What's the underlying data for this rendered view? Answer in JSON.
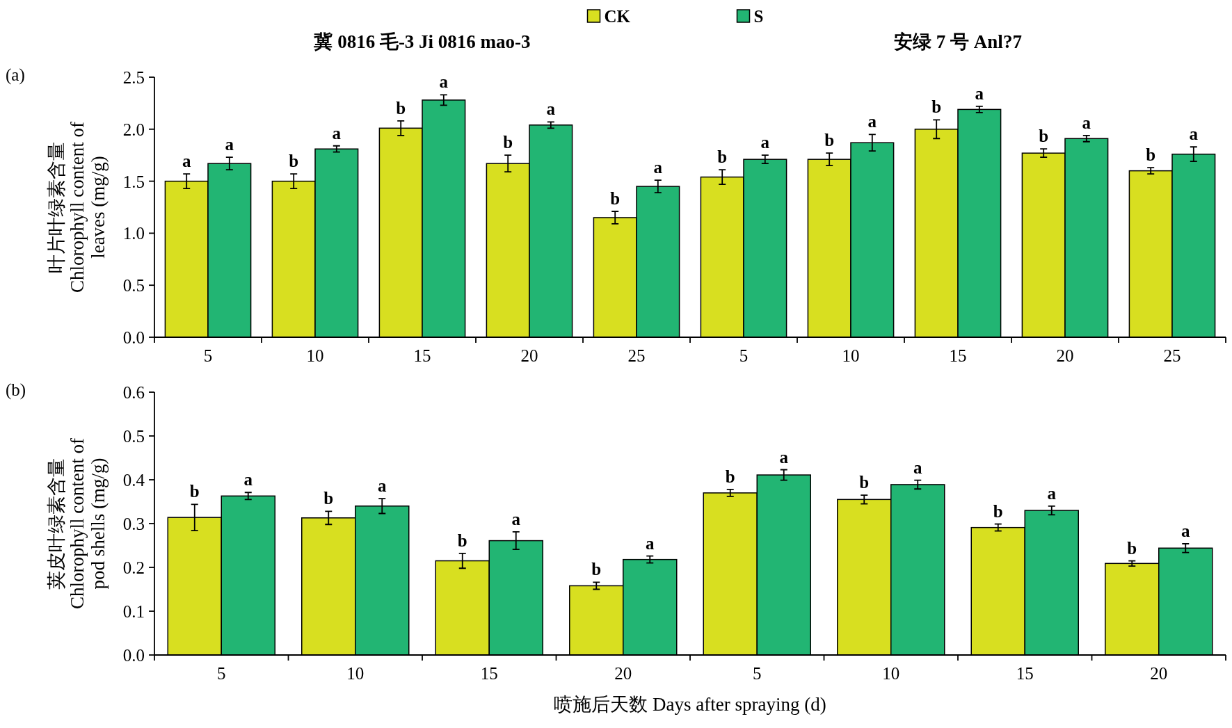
{
  "chart_data": [
    {
      "type": "bar",
      "title": "(a)",
      "ylabel": "叶片叶绿素含量 Chlorophyll content of leaves (mg/g)",
      "legend": "top",
      "annotations": [
        "冀 0816 毛-3  Ji 0816 mao-3",
        "安绿 7 号 Anl?7"
      ],
      "categories": [
        "5",
        "10",
        "15",
        "20",
        "25",
        "5",
        "10",
        "15",
        "20",
        "25"
      ],
      "ylim": [
        0,
        2.5
      ],
      "yticks": [
        {
          "value": 0,
          "label": "0.0"
        },
        {
          "value": 0.5,
          "label": "0.5"
        },
        {
          "value": 1,
          "label": "1.0"
        },
        {
          "value": 1.5,
          "label": "1.5"
        },
        {
          "value": 2,
          "label": "2.0"
        },
        {
          "value": 2.5,
          "label": "2.5"
        }
      ],
      "series": [
        {
          "name": "CK",
          "color": "#d8df20",
          "values": [
            1.5,
            1.5,
            2.01,
            1.67,
            1.15,
            1.54,
            1.71,
            2.0,
            1.77,
            1.6
          ],
          "errors": [
            0.07,
            0.07,
            0.07,
            0.08,
            0.06,
            0.07,
            0.06,
            0.09,
            0.04,
            0.03
          ],
          "value_labels": [
            "a",
            "b",
            "b",
            "b",
            "b",
            "b",
            "b",
            "b",
            "b",
            "b"
          ]
        },
        {
          "name": "S",
          "color": "#22b573",
          "values": [
            1.67,
            1.81,
            2.28,
            2.04,
            1.45,
            1.71,
            1.87,
            2.19,
            1.91,
            1.76
          ],
          "errors": [
            0.06,
            0.03,
            0.05,
            0.03,
            0.06,
            0.04,
            0.08,
            0.03,
            0.03,
            0.07
          ],
          "value_labels": [
            "a",
            "a",
            "a",
            "a",
            "a",
            "a",
            "a",
            "a",
            "a",
            "a"
          ]
        }
      ]
    },
    {
      "type": "bar",
      "title": "(b)",
      "ylabel": "荚皮叶绿素含量 Chlorophyll content of pod shells (mg/g)",
      "xlabel": "喷施后天数 Days after spraying (d)",
      "categories": [
        "5",
        "10",
        "15",
        "20",
        "5",
        "10",
        "15",
        "20"
      ],
      "ylim": [
        0,
        0.6
      ],
      "yticks": [
        {
          "value": 0,
          "label": "0.0"
        },
        {
          "value": 0.1,
          "label": "0.1"
        },
        {
          "value": 0.2,
          "label": "0.2"
        },
        {
          "value": 0.3,
          "label": "0.3"
        },
        {
          "value": 0.4,
          "label": "0.4"
        },
        {
          "value": 0.5,
          "label": "0.5"
        },
        {
          "value": 0.6,
          "label": "0.6"
        }
      ],
      "series": [
        {
          "color": "#d8df20",
          "values": [
            0.314,
            0.313,
            0.215,
            0.158,
            0.37,
            0.355,
            0.291,
            0.209
          ],
          "errors": [
            0.03,
            0.015,
            0.017,
            0.008,
            0.008,
            0.01,
            0.008,
            0.006
          ],
          "value_labels": [
            "b",
            "b",
            "b",
            "b",
            "b",
            "b",
            "b",
            "b"
          ]
        },
        {
          "color": "#22b573",
          "values": [
            0.363,
            0.34,
            0.261,
            0.218,
            0.411,
            0.389,
            0.33,
            0.244
          ],
          "errors": [
            0.008,
            0.017,
            0.02,
            0.008,
            0.012,
            0.01,
            0.01,
            0.01
          ],
          "value_labels": [
            "a",
            "a",
            "a",
            "a",
            "a",
            "a",
            "a",
            "a"
          ]
        }
      ]
    }
  ]
}
